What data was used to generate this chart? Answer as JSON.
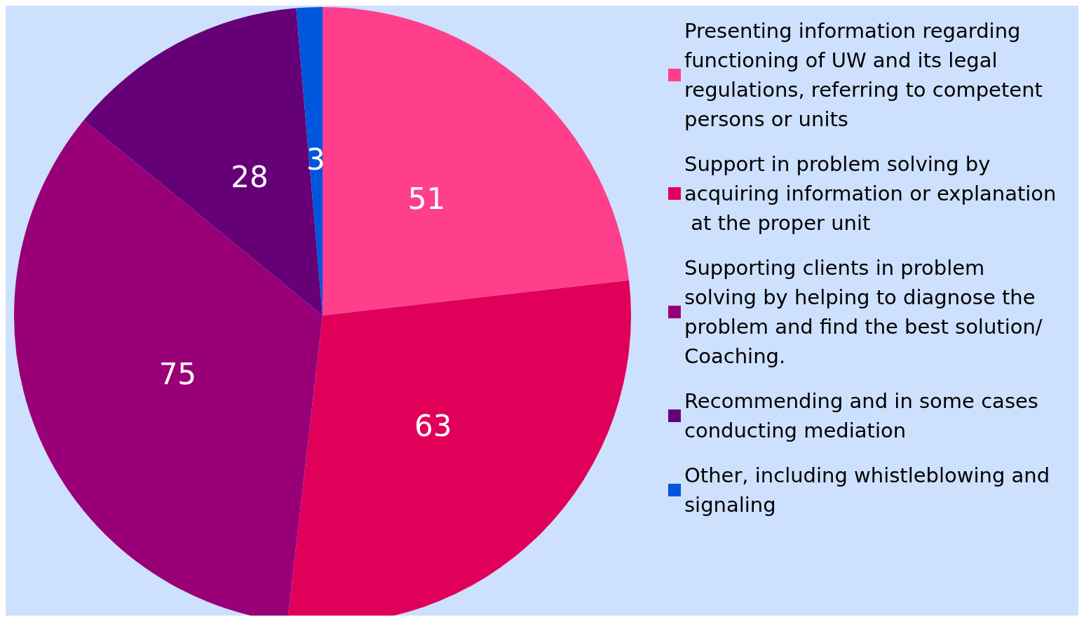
{
  "chart_data": {
    "type": "pie",
    "categories": [
      "Presenting information regarding functioning of UW and its legal regulations, referring to competent persons or units",
      "Support in problem solving by acquiring information or explanation at the proper unit",
      "Supporting clients in problem solving by helping to diagnose the problem and find the best solution/Coaching.",
      "Recommending and in some cases conducting mediation",
      "Other, including whistleblowing and signaling"
    ],
    "values": [
      51,
      63,
      75,
      28,
      3
    ],
    "colors": [
      "#ff3f8c",
      "#e0005a",
      "#990077",
      "#660077",
      "#0055dd"
    ],
    "data_labels": true,
    "legend": "right"
  }
}
